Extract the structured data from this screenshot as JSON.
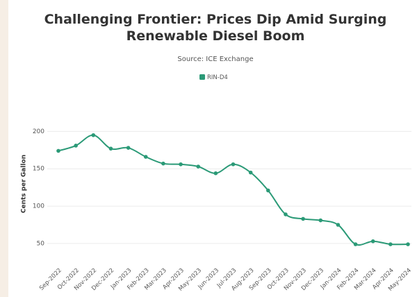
{
  "chart_data": {
    "type": "line",
    "title": "Challenging Frontier: Prices Dip Amid Surging Renewable Diesel Boom",
    "subtitle": "Source: ICE Exchange",
    "y_label": "Cents per Gallon",
    "categories": [
      "Sep-2022",
      "Oct-2022",
      "Nov-2022",
      "Dec-2022",
      "Jan-2023",
      "Feb-2023",
      "Mar-2023",
      "Apr-2023",
      "May-2023",
      "Jun-2023",
      "Jul-2023",
      "Aug-2023",
      "Sep-2023",
      "Oct-2023",
      "Nov-2023",
      "Dec-2023",
      "Jan-2024",
      "Feb-2024",
      "Mar-2024",
      "Apr-2024",
      "May-2024"
    ],
    "series": [
      {
        "name": "RIN-D4",
        "color": "#2b9a77",
        "values": [
          174,
          181,
          195,
          177,
          178,
          166,
          157,
          156,
          153,
          144,
          156,
          145,
          121,
          89,
          83,
          81,
          75,
          49,
          53,
          49,
          49
        ]
      }
    ],
    "ylim": [
      23,
      218
    ],
    "yticks": [
      50,
      100,
      150,
      200
    ],
    "grid": true,
    "legend": "top"
  }
}
